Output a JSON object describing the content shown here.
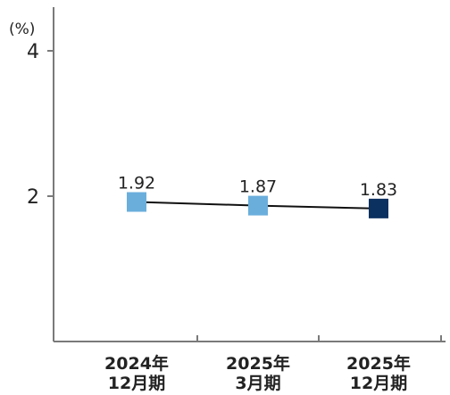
{
  "chart_data": {
    "type": "line",
    "unit_label": "(%)",
    "categories": [
      [
        "2024年",
        "12月期"
      ],
      [
        "2025年",
        "3月期"
      ],
      [
        "2025年",
        "12月期"
      ]
    ],
    "values": [
      1.92,
      1.87,
      1.83
    ],
    "data_labels": [
      "1.92",
      "1.87",
      "1.83"
    ],
    "y_ticks": [
      2,
      4
    ],
    "y_tick_labels": [
      "2",
      "4"
    ],
    "ylim": [
      0,
      4.6
    ],
    "grid": false,
    "line_color": "#111111",
    "axis_color": "#7a7a7a",
    "marker_colors": [
      "#6aaedc",
      "#6aaedc",
      "#0b3160"
    ]
  }
}
